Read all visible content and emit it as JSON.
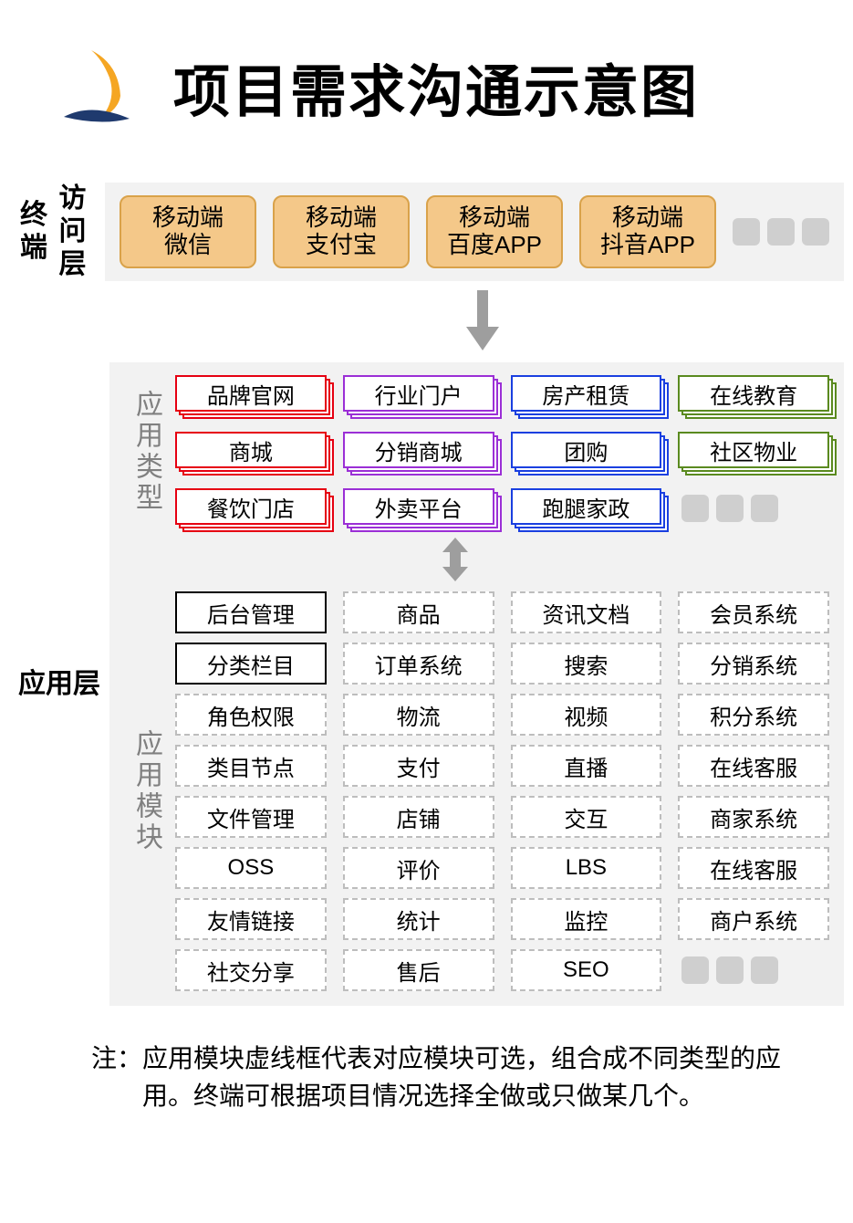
{
  "title": "项目需求沟通示意图",
  "colors": {
    "page_bg": "#ffffff",
    "layer_bg": "#f2f2f2",
    "terminal_fill": "#f4c889",
    "terminal_border": "#d9a24a",
    "ellipsis_dot": "#cfcfcf",
    "section_label": "#808080",
    "arrow": "#9e9e9e",
    "module_dashed_border": "#bdbdbd",
    "module_solid_border": "#000000",
    "logo_orange": "#f5a623",
    "logo_navy": "#1f3a6e"
  },
  "layers": {
    "terminal": {
      "label": "终端\n访问层",
      "items": [
        {
          "line1": "移动端",
          "line2": "微信"
        },
        {
          "line1": "移动端",
          "line2": "支付宝"
        },
        {
          "line1": "移动端",
          "line2": "百度APP"
        },
        {
          "line1": "移动端",
          "line2": "抖音APP"
        }
      ]
    },
    "app": {
      "label": "应用层",
      "types_label": "应用类型",
      "types": [
        {
          "label": "品牌官网",
          "color": "#e60012"
        },
        {
          "label": "行业门户",
          "color": "#9b2fd6"
        },
        {
          "label": "房产租赁",
          "color": "#1a3fe0"
        },
        {
          "label": "在线教育",
          "color": "#5a8a1f"
        },
        {
          "label": "商城",
          "color": "#e60012"
        },
        {
          "label": "分销商城",
          "color": "#9b2fd6"
        },
        {
          "label": "团购",
          "color": "#1a3fe0"
        },
        {
          "label": "社区物业",
          "color": "#5a8a1f"
        },
        {
          "label": "餐饮门店",
          "color": "#e60012"
        },
        {
          "label": "外卖平台",
          "color": "#9b2fd6"
        },
        {
          "label": "跑腿家政",
          "color": "#1a3fe0"
        },
        {
          "label": "__ellipsis__"
        }
      ],
      "modules_label": "应用模块",
      "modules": [
        {
          "label": "后台管理",
          "solid": true
        },
        {
          "label": "商品",
          "solid": false
        },
        {
          "label": "资讯文档",
          "solid": false
        },
        {
          "label": "会员系统",
          "solid": false
        },
        {
          "label": "分类栏目",
          "solid": true
        },
        {
          "label": "订单系统",
          "solid": false
        },
        {
          "label": "搜索",
          "solid": false
        },
        {
          "label": "分销系统",
          "solid": false
        },
        {
          "label": "角色权限",
          "solid": false
        },
        {
          "label": "物流",
          "solid": false
        },
        {
          "label": "视频",
          "solid": false
        },
        {
          "label": "积分系统",
          "solid": false
        },
        {
          "label": "类目节点",
          "solid": false
        },
        {
          "label": "支付",
          "solid": false
        },
        {
          "label": "直播",
          "solid": false
        },
        {
          "label": "在线客服",
          "solid": false
        },
        {
          "label": "文件管理",
          "solid": false
        },
        {
          "label": "店铺",
          "solid": false
        },
        {
          "label": "交互",
          "solid": false
        },
        {
          "label": "商家系统",
          "solid": false
        },
        {
          "label": "OSS",
          "solid": false
        },
        {
          "label": "评价",
          "solid": false
        },
        {
          "label": "LBS",
          "solid": false
        },
        {
          "label": "在线客服",
          "solid": false
        },
        {
          "label": "友情链接",
          "solid": false
        },
        {
          "label": "统计",
          "solid": false
        },
        {
          "label": "监控",
          "solid": false
        },
        {
          "label": "商户系统",
          "solid": false
        },
        {
          "label": "社交分享",
          "solid": false
        },
        {
          "label": "售后",
          "solid": false
        },
        {
          "label": "SEO",
          "solid": false
        },
        {
          "label": "__ellipsis__"
        }
      ]
    }
  },
  "note": "注：应用模块虚线框代表对应模块可选，组合成不同类型的应用。终端可根据项目情况选择全做或只做某几个。"
}
